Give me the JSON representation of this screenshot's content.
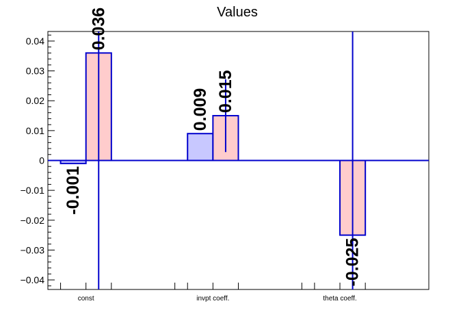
{
  "chart_data": {
    "type": "bar",
    "title": "Values",
    "xlabel": "",
    "ylabel": "",
    "categories": [
      "const",
      "invpt coeff.",
      "theta coeff."
    ],
    "ylim": [
      -0.0432,
      0.0432
    ],
    "yticks": [
      -0.04,
      -0.03,
      -0.02,
      -0.01,
      0,
      0.01,
      0.02,
      0.03,
      0.04
    ],
    "ytick_labels": [
      "−0.04",
      "−0.03",
      "−0.02",
      "−0.01",
      "0",
      "0.01",
      "0.02",
      "0.03",
      "0.04"
    ],
    "grid": false,
    "series": [
      {
        "color": "#c8c8ff",
        "edge_color": "#0000cc",
        "values": [
          -0.001,
          0.009,
          null
        ],
        "errors": [
          null,
          null,
          null
        ],
        "labels": [
          "-0.001",
          "0.009",
          ""
        ]
      },
      {
        "color": "#ffcccc",
        "edge_color": "#0000cc",
        "values": [
          0.036,
          0.015,
          -0.025
        ],
        "errors": [
          0.08,
          0.0122,
          0.07
        ],
        "labels": [
          "0.036",
          "0.015",
          "-0.025"
        ]
      }
    ]
  }
}
